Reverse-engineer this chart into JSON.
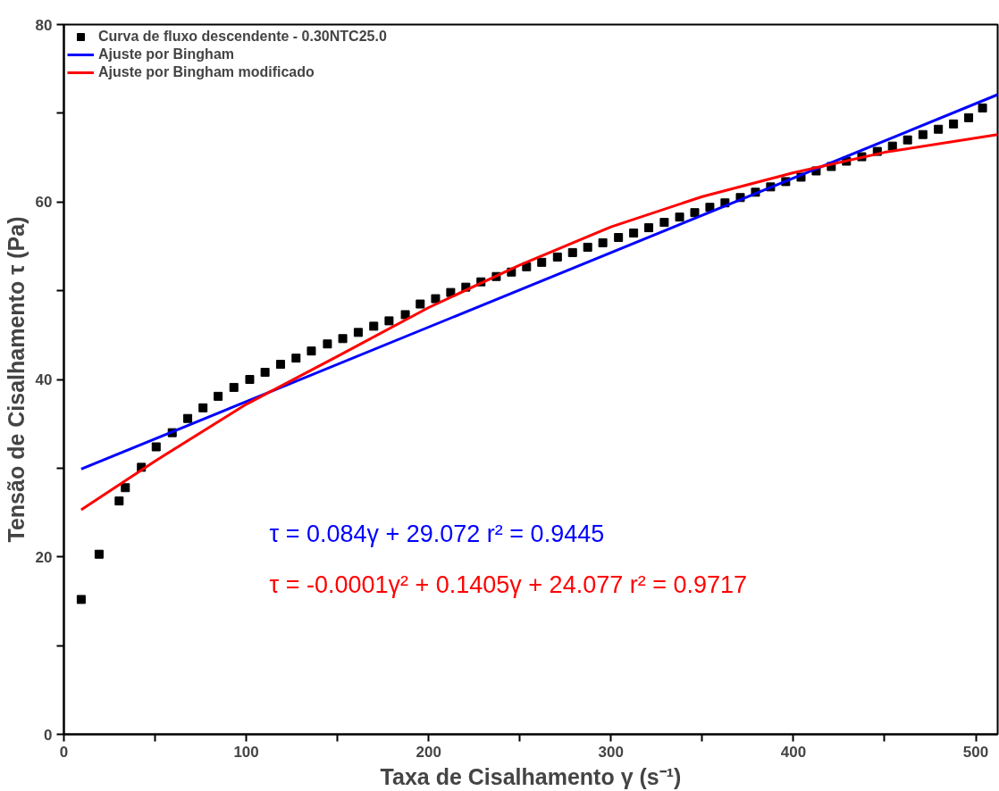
{
  "chart_data": {
    "type": "scatter",
    "xlabel": "Taxa de Cisalhamento γ (s⁻¹)",
    "ylabel": "Tensão de Cisalhamento τ (Pa)",
    "xlim": [
      0,
      512
    ],
    "ylim": [
      0,
      80
    ],
    "xticks": [
      0,
      {
        "value": 50,
        "label": null
      },
      100,
      {
        "value": 150,
        "label": null
      },
      200,
      {
        "value": 250,
        "label": null
      },
      300,
      {
        "value": 350,
        "label": null
      },
      400,
      {
        "value": 450,
        "label": null
      },
      500
    ],
    "yticks": [
      0,
      {
        "value": 10,
        "label": null
      },
      20,
      {
        "value": 30,
        "label": null
      },
      40,
      {
        "value": 50,
        "label": null
      },
      60,
      {
        "value": 70,
        "label": null
      },
      80
    ],
    "grid": false,
    "legend": "top left",
    "series": [
      {
        "name": "Curva de fluxo descendente - 0.30NTC25.0",
        "marker": "square",
        "color": "#000000",
        "x": [
          9.5,
          19.3,
          30.3,
          33.7,
          42.5,
          50.6,
          59.4,
          67.9,
          76.3,
          84.6,
          93.2,
          101.9,
          110.3,
          118.8,
          127.3,
          135.7,
          144.5,
          152.9,
          161.4,
          169.9,
          178.3,
          187.2,
          195.4,
          203.8,
          212.1,
          220.4,
          228.7,
          237.1,
          245.4,
          253.7,
          262.0,
          270.6,
          278.9,
          287.2,
          295.5,
          304.1,
          312.4,
          320.7,
          329.2,
          337.6,
          345.9,
          354.2,
          362.5,
          370.9,
          379.2,
          387.5,
          395.8,
          404.2,
          412.5,
          420.8,
          429.1,
          437.5,
          446.0,
          454.3,
          462.6,
          471.0,
          479.5,
          487.8,
          496.1,
          503.7
        ],
        "values": [
          15.2,
          20.3,
          26.3,
          27.8,
          30.1,
          32.4,
          34.0,
          35.6,
          36.8,
          38.1,
          39.1,
          40.0,
          40.8,
          41.7,
          42.4,
          43.2,
          44.0,
          44.6,
          45.3,
          46.0,
          46.6,
          47.3,
          48.5,
          49.1,
          49.8,
          50.4,
          51.0,
          51.6,
          52.1,
          52.7,
          53.2,
          53.8,
          54.3,
          54.9,
          55.4,
          56.0,
          56.5,
          57.1,
          57.7,
          58.3,
          58.8,
          59.4,
          59.9,
          60.5,
          61.1,
          61.7,
          62.3,
          62.8,
          63.5,
          64.0,
          64.6,
          65.1,
          65.7,
          66.3,
          67.0,
          67.6,
          68.2,
          68.8,
          69.5,
          70.6
        ]
      },
      {
        "name": "Ajuste por Bingham",
        "type": "line",
        "color": "#0000ff",
        "x": [
          9.5,
          512
        ],
        "values": [
          29.9,
          72.1
        ]
      },
      {
        "name": "Ajuste por Bingham modificado",
        "type": "line",
        "color": "#ff0000",
        "x": [
          9.5,
          50,
          100,
          150,
          200,
          250,
          300,
          350,
          400,
          450,
          512
        ],
        "values": [
          25.3,
          30.8,
          37.2,
          42.6,
          48.1,
          52.9,
          57.2,
          60.6,
          63.3,
          65.6,
          67.6
        ]
      }
    ],
    "annotations": [
      "τ = 0.084γ + 29.072 r² = 0.9445",
      "τ = -0.0001γ² + 0.1405γ + 24.077 r² = 0.9717"
    ]
  }
}
